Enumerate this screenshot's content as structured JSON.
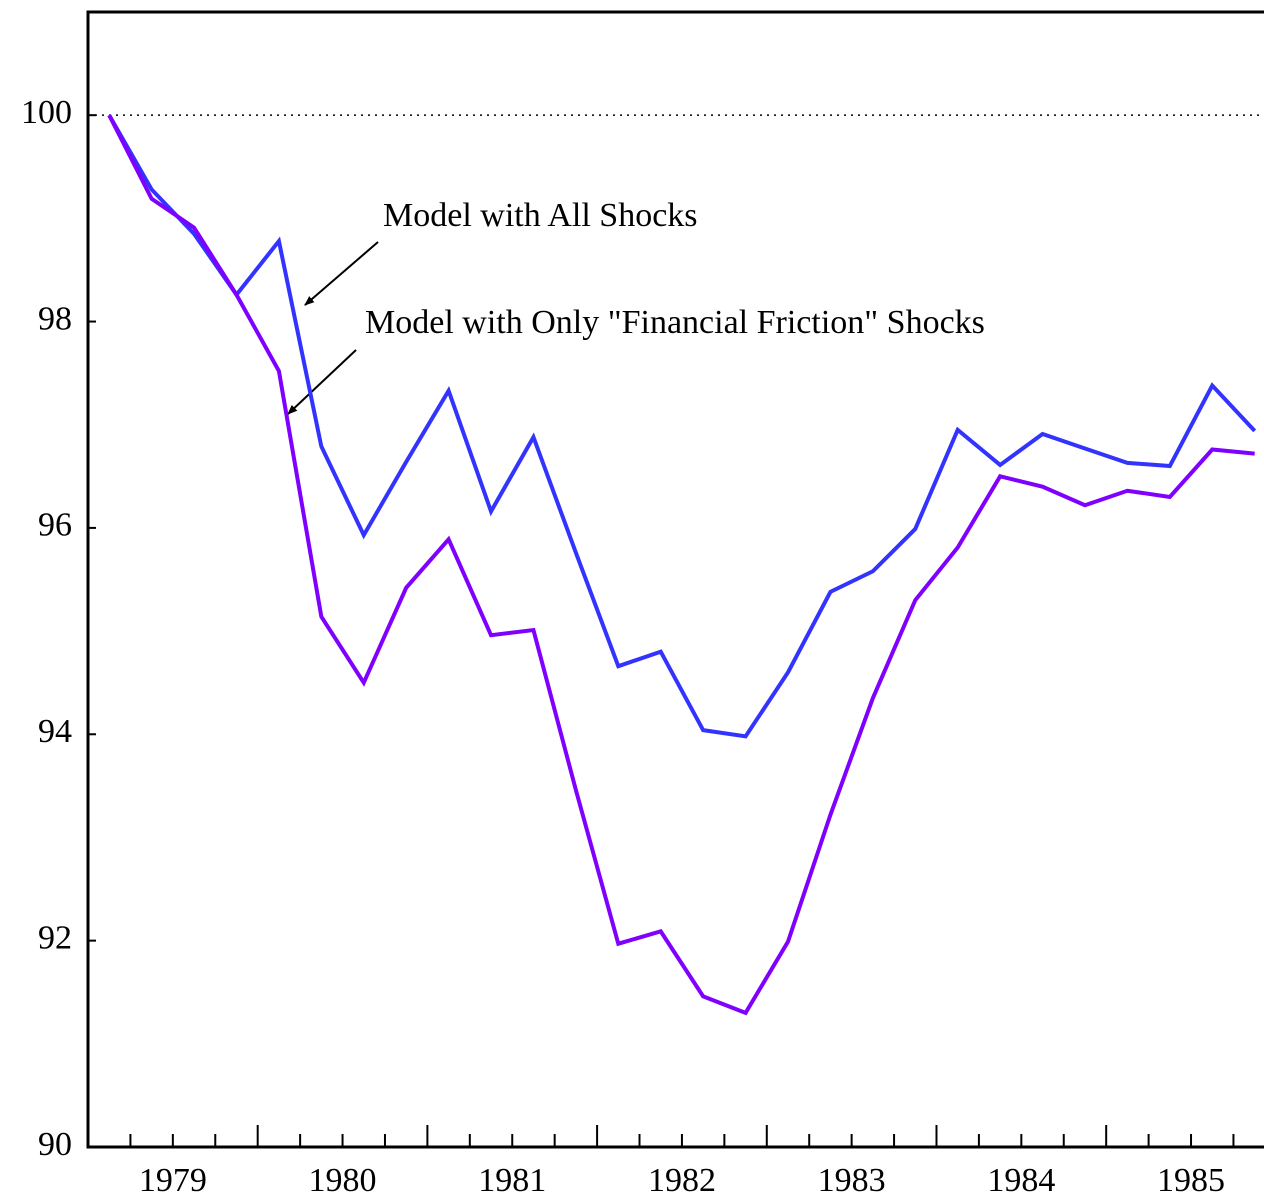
{
  "chart_data": {
    "type": "line",
    "x": [
      1979.125,
      1979.375,
      1979.625,
      1979.875,
      1980.125,
      1980.375,
      1980.625,
      1980.875,
      1981.125,
      1981.375,
      1981.625,
      1981.875,
      1982.125,
      1982.375,
      1982.625,
      1982.875,
      1983.125,
      1983.375,
      1983.625,
      1983.875,
      1984.125,
      1984.375,
      1984.625,
      1984.875,
      1985.125,
      1985.375,
      1985.625,
      1985.875
    ],
    "series": [
      {
        "name": "Model with All Shocks",
        "color": "#3333ff",
        "values": [
          100,
          99.28,
          98.85,
          98.26,
          98.78,
          96.79,
          95.93,
          96.64,
          97.33,
          96.16,
          96.88,
          95.76,
          94.66,
          94.8,
          94.04,
          93.98,
          94.6,
          95.38,
          95.58,
          95.99,
          96.95,
          96.61,
          96.91,
          96.77,
          96.63,
          96.6,
          97.38,
          96.94
        ]
      },
      {
        "name": "Model with Only \"Financial Friction\" Shocks",
        "color": "#7f00ff",
        "values": [
          100,
          99.19,
          98.91,
          98.26,
          97.52,
          95.14,
          94.5,
          95.42,
          95.89,
          94.96,
          95.01,
          93.46,
          91.97,
          92.09,
          91.46,
          91.3,
          91.99,
          93.22,
          94.35,
          95.3,
          95.81,
          96.5,
          96.4,
          96.22,
          96.36,
          96.3,
          96.76,
          96.72
        ]
      }
    ],
    "xlim": [
      1979,
      1985.93
    ],
    "xticks": [
      {
        "value": 1979.5,
        "label": "1979"
      },
      {
        "value": 1980.5,
        "label": "1980"
      },
      {
        "value": 1981.5,
        "label": "1981"
      },
      {
        "value": 1982.5,
        "label": "1982"
      },
      {
        "value": 1983.5,
        "label": "1983"
      },
      {
        "value": 1984.5,
        "label": "1984"
      },
      {
        "value": 1985.5,
        "label": "1985"
      }
    ],
    "xtick_marks": [
      1979.25,
      1979.5,
      1979.75,
      1980,
      1980.25,
      1980.5,
      1980.75,
      1981,
      1981.25,
      1981.5,
      1981.75,
      1982,
      1982.25,
      1982.5,
      1982.75,
      1983,
      1983.25,
      1983.5,
      1983.75,
      1984,
      1984.25,
      1984.5,
      1984.75,
      1985,
      1985.25,
      1985.5,
      1985.75
    ],
    "ylim": [
      90,
      101
    ],
    "yticks": [
      90,
      92,
      94,
      96,
      98,
      100
    ],
    "hline": 100
  }
}
